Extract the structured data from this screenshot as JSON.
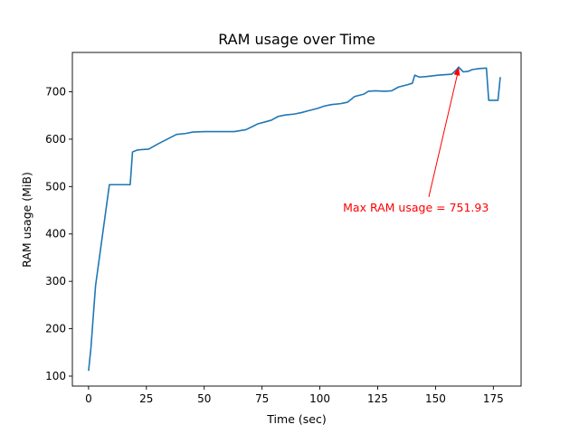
{
  "chart_data": {
    "type": "line",
    "title": "RAM usage over Time",
    "xlabel": "Time (sec)",
    "ylabel": "RAM usage (MiB)",
    "xlim": [
      -7,
      187
    ],
    "ylim": [
      79,
      783
    ],
    "xticks": [
      0,
      25,
      50,
      75,
      100,
      125,
      150,
      175
    ],
    "yticks": [
      100,
      200,
      300,
      400,
      500,
      600,
      700
    ],
    "grid": false,
    "series": [
      {
        "color": "#1f77b4",
        "x": [
          0,
          1,
          3,
          9,
          14,
          18,
          19,
          21,
          23,
          26,
          30,
          34,
          38,
          42,
          45,
          50,
          55,
          60,
          63,
          68,
          71,
          73,
          76,
          79,
          82,
          85,
          89,
          92,
          95,
          99,
          102,
          105,
          109,
          112,
          115,
          119,
          121,
          124,
          128,
          131,
          134,
          138,
          140,
          141,
          143,
          146,
          151,
          157,
          159,
          160,
          162,
          164,
          166,
          169,
          172,
          173,
          175,
          177,
          178
        ],
        "y": [
          111,
          158,
          290,
          504,
          504,
          504,
          573,
          577,
          578,
          579,
          590,
          600,
          610,
          612,
          615,
          616,
          616,
          616,
          616,
          620,
          627,
          632,
          636,
          640,
          648,
          651,
          653,
          656,
          660,
          665,
          670,
          673,
          675,
          678,
          690,
          695,
          701,
          702,
          701,
          702,
          710,
          715,
          718,
          735,
          731,
          732,
          735,
          737,
          746,
          752,
          742,
          743,
          747,
          749,
          750,
          682,
          682,
          682,
          731
        ]
      }
    ],
    "annotation": {
      "text": "Max RAM usage = 751.93",
      "color": "#ff0000",
      "point": [
        160,
        751.93
      ],
      "text_anchor": [
        110,
        455
      ]
    }
  }
}
